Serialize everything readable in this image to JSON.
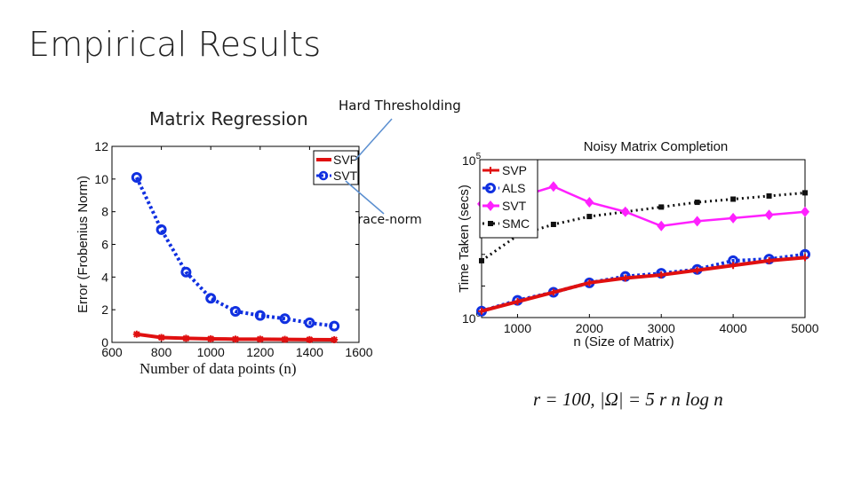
{
  "slide": {
    "title": "Empirical Results",
    "left_heading": "Matrix Regression",
    "left_xcaption": "Number of data points (n)",
    "callout_hard": "Hard Thresholding",
    "callout_trace": "Trace-norm",
    "formula": "r = 100, |Ω| = 5 r n log n"
  },
  "colors": {
    "svp": "#e01010",
    "svt_left": "#1030e0",
    "als": "#1030e0",
    "svt_right": "#ff20ff",
    "smc": "#111111",
    "callout_line": "#5b8fd0"
  },
  "chart_data": [
    {
      "type": "line",
      "title": "",
      "xlabel": "",
      "ylabel": "Error (Frobenius Norm)",
      "xlim": [
        600,
        1600
      ],
      "ylim": [
        0,
        12
      ],
      "xticks": [
        600,
        800,
        1000,
        1200,
        1400,
        1600
      ],
      "yticks": [
        0,
        2,
        4,
        6,
        8,
        10,
        12
      ],
      "legend_position": "top-right",
      "series": [
        {
          "name": "SVP",
          "x": [
            700,
            800,
            900,
            1000,
            1100,
            1200,
            1300,
            1400,
            1500
          ],
          "y": [
            0.5,
            0.3,
            0.25,
            0.22,
            0.2,
            0.2,
            0.18,
            0.17,
            0.16
          ]
        },
        {
          "name": "SVT",
          "x": [
            700,
            800,
            900,
            1000,
            1100,
            1200,
            1300,
            1400,
            1500
          ],
          "y": [
            10.1,
            6.9,
            4.3,
            2.7,
            1.9,
            1.65,
            1.45,
            1.2,
            1.0
          ]
        }
      ]
    },
    {
      "type": "line",
      "title": "Noisy Matrix Completion",
      "xlabel": "n (Size of Matrix)",
      "ylabel": "Time Taken (secs)",
      "xlim": [
        500,
        5000
      ],
      "ylim_exponent": [
        0,
        5
      ],
      "log_y": true,
      "xticks": [
        1000,
        2000,
        3000,
        4000,
        5000
      ],
      "ytick_labels": [
        "10^0",
        "10^5"
      ],
      "legend_position": "top-left",
      "series": [
        {
          "name": "SVP",
          "x": [
            500,
            1000,
            1500,
            2000,
            2500,
            3000,
            3500,
            4000,
            4500,
            5000
          ],
          "y": [
            1.6,
            3.2,
            6.3,
            12.6,
            17.8,
            22.4,
            31.6,
            44.7,
            63.1,
            79.4
          ]
        },
        {
          "name": "ALS",
          "x": [
            500,
            1000,
            1500,
            2000,
            2500,
            3000,
            3500,
            4000,
            4500,
            5000
          ],
          "y": [
            1.6,
            3.5,
            6.3,
            12.6,
            20,
            25.1,
            33.5,
            63.1,
            70.8,
            100
          ]
        },
        {
          "name": "SVT",
          "x": [
            500,
            1000,
            1500,
            2000,
            2500,
            3000,
            3500,
            4000,
            4500,
            5000
          ],
          "y": [
            3981,
            6310,
            14125,
            4467,
            2239,
            794,
            1122,
            1413,
            1778,
            2239
          ]
        },
        {
          "name": "SMC",
          "x": [
            500,
            1000,
            1500,
            2000,
            2500,
            3000,
            3500,
            4000,
            4500,
            5000
          ],
          "y": [
            63.1,
            398,
            891,
            1585,
            2239,
            3162,
            4467,
            5623,
            7079,
            8913
          ]
        }
      ]
    }
  ]
}
